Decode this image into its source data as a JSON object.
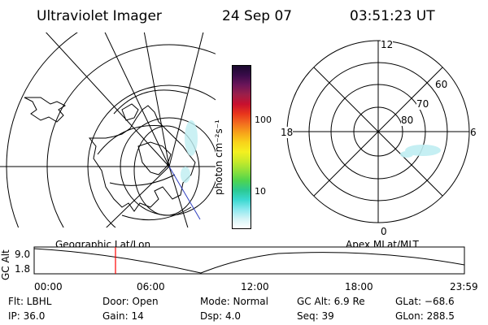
{
  "header": {
    "title": "Ultraviolet Imager",
    "date": "24 Sep 07",
    "time": "03:51:23 UT"
  },
  "colorbar": {
    "unit_label": "photon cm⁻²s⁻¹",
    "ticks": [
      "100",
      "10"
    ],
    "colors": [
      "#1a0a2e",
      "#3a0b4a",
      "#6b1559",
      "#9b1f4a",
      "#c8102e",
      "#e8341c",
      "#f26b1f",
      "#f7a21a",
      "#f8d21a",
      "#f4f020",
      "#c8ea2a",
      "#8fe03a",
      "#4fd44f",
      "#2bc992",
      "#3ad8d0",
      "#8ae8ee",
      "#d4f4f6",
      "#ffffff"
    ]
  },
  "polar_plot": {
    "lat_labels": [
      "60",
      "70",
      "80"
    ],
    "mlt_labels": [
      "12",
      "18",
      "6",
      "0"
    ]
  },
  "timeline": {
    "y_axis_label": "GC Alt",
    "y_ticks": [
      "9.0",
      "1.8"
    ],
    "left_caption": "Geographic Lat/Lon",
    "right_caption": "Apex MLat/MLT",
    "x_ticks": [
      "00:00",
      "06:00",
      "12:00",
      "18:00",
      "23:59"
    ],
    "marker_color": "#ff0000"
  },
  "info": {
    "flt": "Flt: LBHL",
    "ip": "IP: 36.0",
    "door": "Door: Open",
    "gain": "Gain: 14",
    "mode": "Mode:  Normal",
    "dsp": "Dsp:      4.0",
    "gc_alt": "GC Alt: 6.9 Re",
    "seq": "Seq: 39",
    "glat": "GLat: −68.6",
    "glon": "GLon: 288.5"
  }
}
